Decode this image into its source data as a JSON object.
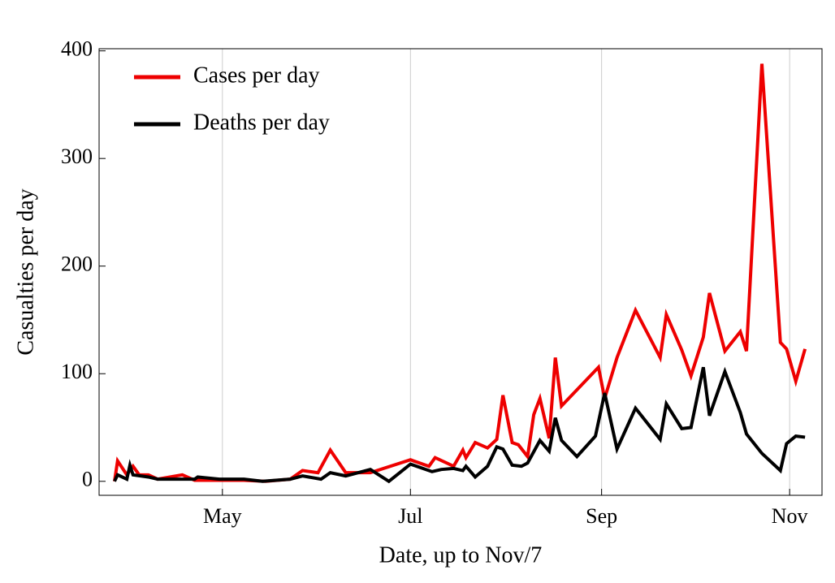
{
  "chart_data": {
    "type": "line",
    "xlabel": "Date, up to Nov/7",
    "ylabel": "Casualties per day",
    "xlim": [
      81,
      315.5
    ],
    "ylim": [
      -13,
      402
    ],
    "xticks": [
      {
        "value": 121,
        "label": "May"
      },
      {
        "value": 182,
        "label": "Jul"
      },
      {
        "value": 244,
        "label": "Sep"
      },
      {
        "value": 305,
        "label": "Nov"
      }
    ],
    "yticks": [
      0,
      100,
      200,
      300,
      400
    ],
    "grid": "x",
    "legend": "upper left",
    "series": [
      {
        "name": "Cases per day",
        "color": "#ee0000",
        "x": [
          86,
          87,
          90,
          92,
          94,
          97,
          100,
          108,
          112,
          117,
          128,
          135,
          143,
          147,
          152,
          156,
          161,
          169,
          182,
          188,
          190,
          196,
          199,
          200,
          203,
          207,
          210,
          212,
          215,
          217,
          220,
          222,
          224,
          227,
          229,
          231,
          243,
          245,
          249,
          255,
          263,
          265,
          270,
          273,
          277,
          279,
          284,
          289,
          291,
          296,
          302,
          304,
          307,
          310
        ],
        "values": [
          0,
          19,
          6,
          14,
          6,
          6,
          2,
          6,
          1,
          1,
          1,
          0,
          2,
          10,
          8,
          29,
          8,
          8,
          20,
          14,
          22,
          14,
          29,
          22,
          36,
          31,
          39,
          80,
          36,
          34,
          23,
          62,
          77,
          40,
          115,
          70,
          106,
          77,
          115,
          159,
          115,
          155,
          122,
          98,
          134,
          175,
          121,
          139,
          121,
          388,
          129,
          123,
          93,
          123
        ]
      },
      {
        "name": "Deaths per day",
        "color": "#000000",
        "x": [
          86,
          87,
          90,
          91,
          92,
          97,
          100,
          108,
          112,
          113,
          120,
          128,
          134,
          143,
          147,
          153,
          156,
          161,
          169,
          175,
          182,
          189,
          192,
          196,
          199,
          200,
          203,
          207,
          210,
          212,
          215,
          218,
          220,
          224,
          227,
          229,
          231,
          236,
          242,
          245,
          249,
          255,
          263,
          265,
          270,
          273,
          277,
          279,
          284,
          289,
          291,
          296,
          302,
          304,
          307,
          310
        ],
        "values": [
          0,
          6,
          2,
          15,
          6,
          4,
          2,
          2,
          2,
          4,
          2,
          2,
          0,
          2,
          5,
          2,
          8,
          5,
          11,
          0,
          16,
          9,
          11,
          12,
          10,
          14,
          4,
          14,
          32,
          30,
          15,
          14,
          17,
          38,
          28,
          59,
          38,
          23,
          42,
          82,
          30,
          68,
          39,
          72,
          49,
          50,
          106,
          61,
          102,
          64,
          44,
          26,
          10,
          35,
          42,
          41
        ]
      }
    ]
  }
}
